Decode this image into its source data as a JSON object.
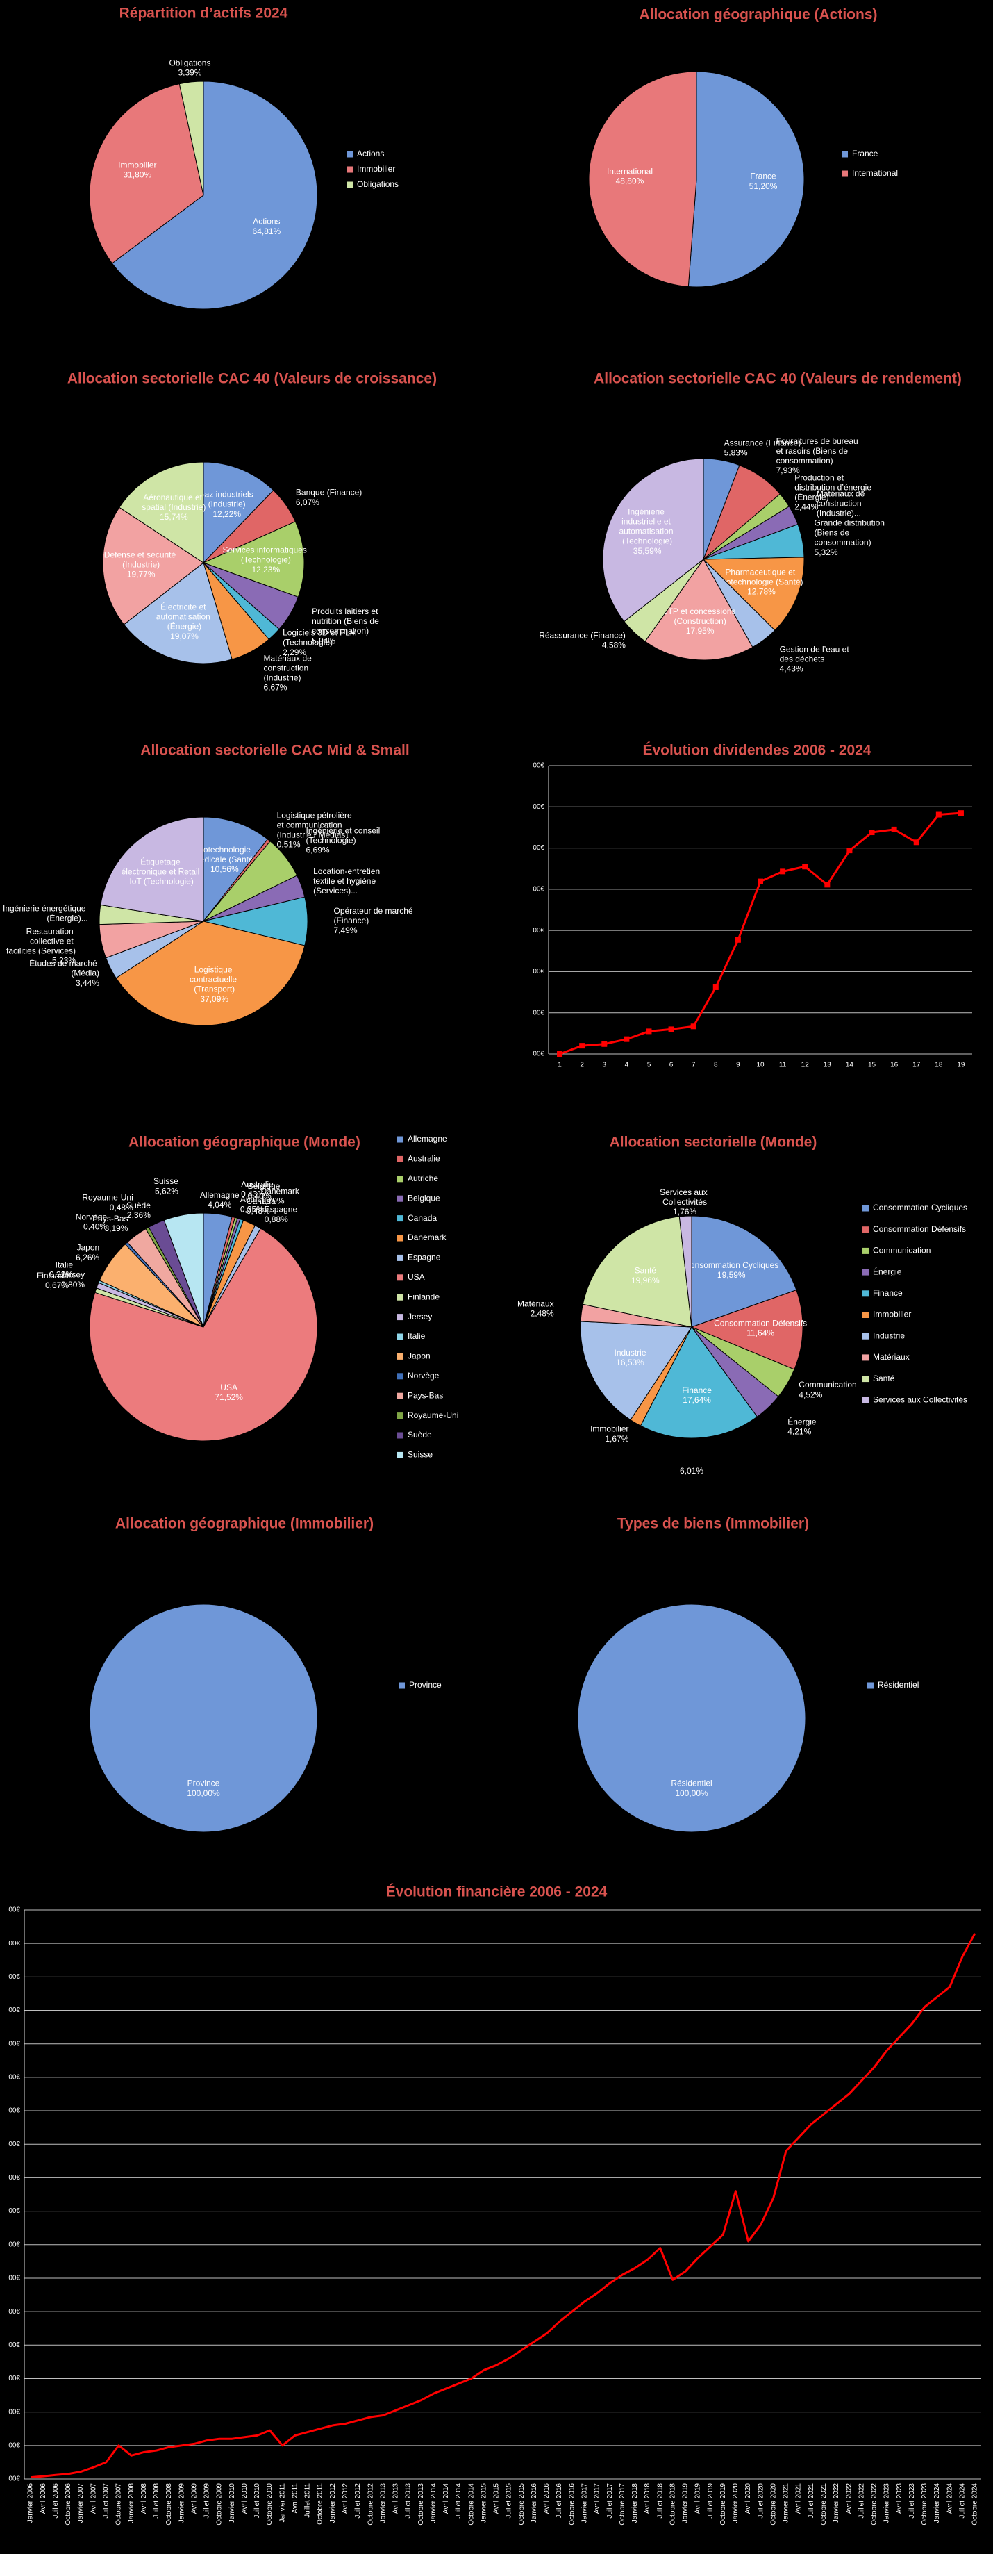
{
  "chart_data": [
    {
      "type": "pie",
      "title": "Répartition d’actifs 2024",
      "legend": true,
      "categories": [
        "Actions",
        "Immobilier",
        "Obligations"
      ],
      "values": [
        64.81,
        31.8,
        3.39
      ],
      "value_labels": [
        "64,81%",
        "31,80%",
        "3,39%"
      ],
      "colors": [
        "#6f97d8",
        "#e8787a",
        "#cfe5a6"
      ]
    },
    {
      "type": "pie",
      "title": "Allocation géographique (Actions)",
      "legend": true,
      "categories": [
        "France",
        "International"
      ],
      "values": [
        51.2,
        48.8
      ],
      "value_labels": [
        "51,20%",
        "48,80%"
      ],
      "colors": [
        "#6f97d8",
        "#e8787a"
      ]
    },
    {
      "type": "pie",
      "title": "Allocation sectorielle CAC 40 (Valeurs de croissance)",
      "legend": false,
      "categories": [
        "Gaz industriels (Industrie)",
        "Banque (Finance)",
        "Services informatiques (Technologie)",
        "Produits laitiers et nutrition (Biens de consommation)",
        "Logiciels 3D et PLM (Technologie)",
        "Matériaux de construction (Industrie)",
        "Électricité et automatisation (Énergie)",
        "Défense et sécurité (Industrie)",
        "Aéronautique et spatial (Industrie)"
      ],
      "values": [
        12.22,
        6.07,
        12.23,
        5.94,
        2.29,
        6.67,
        19.07,
        19.77,
        15.74
      ],
      "value_labels": [
        "12,22%",
        "6,07%",
        "12,23%",
        "5,94%",
        "2,29%",
        "6,67%",
        "19,07%",
        "19,77%",
        "15,74%"
      ],
      "colors": [
        "#6f97d8",
        "#e06666",
        "#a9cf6a",
        "#8a6bb5",
        "#4fb8d6",
        "#f79646",
        "#a7c1ea",
        "#f2a2a2",
        "#cfe5a6"
      ]
    },
    {
      "type": "pie",
      "title": "Allocation sectorielle CAC 40 (Valeurs de rendement)",
      "legend": false,
      "categories": [
        "Assurance (Finance)",
        "Fournitures de bureau et rasoirs (Biens de consommation)",
        "Production et distribution d’énergie (Énergie)",
        "Matériaux de construction (Industrie)...",
        "Grande distribution (Biens de consommation)",
        "Pharmaceutique et biotechnologie (Santé)",
        "Gestion de l’eau et des déchets",
        "BTP et concessions (Construction)",
        "Réassurance (Finance)",
        "Ingénierie industrielle et automatisation (Technologie)"
      ],
      "values": [
        5.83,
        7.93,
        2.44,
        3.15,
        5.32,
        12.78,
        4.43,
        17.95,
        4.58,
        35.59
      ],
      "value_labels": [
        "5,83%",
        "7,93%",
        "2,44%",
        null,
        "5,32%",
        "12,78%",
        "4,43%",
        "17,95%",
        "4,58%",
        "35,59%"
      ],
      "colors": [
        "#6f97d8",
        "#e06666",
        "#a9cf6a",
        "#8a6bb5",
        "#4fb8d6",
        "#f79646",
        "#a7c1ea",
        "#f2a2a2",
        "#cfe5a6",
        "#c8b8e2"
      ]
    },
    {
      "type": "pie",
      "title": "Allocation sectorielle CAC Mid & Small",
      "legend": false,
      "categories": [
        "Biotechnologie médicale (Santé)",
        "Logistique pétrolière et communication (Industrie / Médias)",
        "Ingénierie et conseil (Technologie)",
        "Location-entretien textile et hygiène (Services)...",
        "Opérateur de marché (Finance)",
        "Logistique contractuelle (Transport)",
        "Études de marché (Média)",
        "Restauration collective et facilities (Services)",
        "Ingénierie énergétique (Énergie)...",
        "Étiquetage électronique et Retail IoT (Technologie)"
      ],
      "values": [
        10.56,
        0.51,
        6.69,
        3.5,
        7.49,
        37.09,
        3.44,
        5.23,
        3.0,
        22.49
      ],
      "value_labels": [
        "10,56%",
        "0,51%",
        "6,69%",
        null,
        "7,49%",
        "37,09%",
        "3,44%",
        "5,23%",
        null,
        null
      ],
      "colors": [
        "#6f97d8",
        "#e06666",
        "#a9cf6a",
        "#8a6bb5",
        "#4fb8d6",
        "#f79646",
        "#a7c1ea",
        "#f2a2a2",
        "#cfe5a6",
        "#c8b8e2"
      ]
    },
    {
      "type": "line",
      "title": "Évolution dividendes 2006 - 2024",
      "grid": true,
      "markers": true,
      "color": "#ff0000",
      "categories": [
        1,
        2,
        3,
        4,
        5,
        6,
        7,
        8,
        9,
        10,
        11,
        12,
        13,
        14,
        15,
        16,
        17,
        18,
        19
      ],
      "values": [
        0,
        0.2,
        0.24,
        0.36,
        0.55,
        0.6,
        0.67,
        1.62,
        2.77,
        4.19,
        4.43,
        4.55,
        4.11,
        4.94,
        5.38,
        5.45,
        5.14,
        5.81,
        5.85
      ],
      "ylim": [
        0,
        7
      ],
      "yticks": [
        {
          "value": 0,
          "label": "00€"
        },
        {
          "value": 1,
          "label": "00€"
        },
        {
          "value": 2,
          "label": "00€"
        },
        {
          "value": 3,
          "label": "00€"
        },
        {
          "value": 4,
          "label": "00€"
        },
        {
          "value": 5,
          "label": "00€"
        },
        {
          "value": 6,
          "label": "00€"
        },
        {
          "value": 7,
          "label": "00€"
        }
      ]
    },
    {
      "type": "pie",
      "title": "Allocation géographique (Monde)",
      "legend": true,
      "categories": [
        "Allemagne",
        "Australie",
        "Autriche",
        "Belgique",
        "Canada",
        "Danemark",
        "Espagne",
        "USA",
        "Finlande",
        "Jersey",
        "Italie",
        "Japon",
        "Norvège",
        "Pays-Bas",
        "Royaume-Uni",
        "Suède",
        "Suisse"
      ],
      "values": [
        4.04,
        0.43,
        0.35,
        0.4,
        0.48,
        1.79,
        0.88,
        71.52,
        0.67,
        0.8,
        0.32,
        6.26,
        0.4,
        3.19,
        0.48,
        2.36,
        5.62
      ],
      "value_labels": [
        "4,04%",
        "0,43%",
        "0,35%",
        "0,40%",
        "0,48%",
        "1,79%",
        "0,88%",
        "71,52%",
        "0,67%",
        "0,80%",
        "0,32%",
        "6,26%",
        "0,40%",
        "3,19%",
        "0,48%",
        "2,36%",
        "5,62%"
      ],
      "colors": [
        "#6f97d8",
        "#e06666",
        "#a9cf6a",
        "#8a6bb5",
        "#4fb8d6",
        "#f79646",
        "#a7c1ea",
        "#ec7b7d",
        "#cfe5a6",
        "#c8b8e2",
        "#8fd6e8",
        "#fbb06e",
        "#3f6fb8",
        "#f0a8a0",
        "#7fa545",
        "#6a4c94",
        "#b7e6f2"
      ]
    },
    {
      "type": "pie",
      "title": "Allocation sectorielle (Monde)",
      "legend": true,
      "categories": [
        "Consommation Cycliques",
        "Consommation Défensifs",
        "Communication",
        "Énergie",
        "Finance",
        "Immobilier",
        "Industrie",
        "Matériaux",
        "Santé",
        "Services aux Collectivités"
      ],
      "values": [
        19.59,
        11.64,
        4.52,
        4.21,
        17.64,
        1.67,
        16.53,
        2.48,
        19.96,
        1.76
      ],
      "value_labels": [
        "19,59%",
        "11,64%",
        "4,52%",
        "4,21%",
        "17,64%",
        "1,67%",
        "16,53%",
        "2,48%",
        "19,96%",
        "1,76%"
      ],
      "annotations": [
        "6,01%"
      ],
      "colors": [
        "#6f97d8",
        "#e06666",
        "#a9cf6a",
        "#8a6bb5",
        "#4fb8d6",
        "#f79646",
        "#a7c1ea",
        "#f2a2a2",
        "#cfe5a6",
        "#c8b8e2"
      ]
    },
    {
      "type": "pie",
      "title": "Allocation géographique (Immobilier)",
      "legend": true,
      "categories": [
        "Province"
      ],
      "values": [
        100.0
      ],
      "value_labels": [
        "100,00%"
      ],
      "colors": [
        "#6f97d8"
      ]
    },
    {
      "type": "pie",
      "title": "Types de biens (Immobilier)",
      "legend": true,
      "categories": [
        "Résidentiel"
      ],
      "values": [
        100.0
      ],
      "value_labels": [
        "100,00%"
      ],
      "colors": [
        "#6f97d8"
      ]
    },
    {
      "type": "line",
      "title": "Évolution financière 2006 - 2024",
      "grid": true,
      "markers": false,
      "color": "#ff0000",
      "categories": [
        "Janvier 2006",
        "Avril 2006",
        "Juillet 2006",
        "Octobre 2006",
        "Janvier 2007",
        "Avril 2007",
        "Juillet 2007",
        "Octobre 2007",
        "Janvier 2008",
        "Avril 2008",
        "Juillet 2008",
        "Octobre 2008",
        "Janvier 2009",
        "Avril 2009",
        "Juillet 2009",
        "Octobre 2009",
        "Janvier 2010",
        "Avril 2010",
        "Juillet 2010",
        "Octobre 2010",
        "Janvier 2011",
        "Avril 2011",
        "Juillet 2011",
        "Octobre 2011",
        "Janvier 2012",
        "Avril 2012",
        "Juillet 2012",
        "Octobre 2012",
        "Janvier 2013",
        "Avril 2013",
        "Juillet 2013",
        "Octobre 2013",
        "Janvier 2014",
        "Avril 2014",
        "Juillet 2014",
        "Octobre 2014",
        "Janvier 2015",
        "Avril 2015",
        "Juillet 2015",
        "Octobre 2015",
        "Janvier 2016",
        "Avril 2016",
        "Juillet 2016",
        "Octobre 2016",
        "Janvier 2017",
        "Avril 2017",
        "Juillet 2017",
        "Octobre 2017",
        "Janvier 2018",
        "Avril 2018",
        "Juillet 2018",
        "Octobre 2018",
        "Janvier 2019",
        "Avril 2019",
        "Juillet 2019",
        "Octobre 2019",
        "Janvier 2020",
        "Avril 2020",
        "Juillet 2020",
        "Octobre 2020",
        "Janvier 2021",
        "Avril 2021",
        "Juillet 2021",
        "Octobre 2021",
        "Janvier 2022",
        "Avril 2022",
        "Juillet 2022",
        "Octobre 2022",
        "Janvier 2023",
        "Avril 2023",
        "Juillet 2023",
        "Octobre 2023",
        "Janvier 2024",
        "Avril 2024",
        "Juillet 2024",
        "Octobre 2024"
      ],
      "values": [
        0.05,
        0.08,
        0.12,
        0.15,
        0.22,
        0.35,
        0.5,
        1.0,
        0.7,
        0.8,
        0.85,
        0.95,
        1.0,
        1.05,
        1.15,
        1.2,
        1.2,
        1.25,
        1.3,
        1.45,
        1.0,
        1.3,
        1.4,
        1.5,
        1.6,
        1.65,
        1.75,
        1.85,
        1.9,
        2.05,
        2.2,
        2.35,
        2.55,
        2.7,
        2.85,
        3.0,
        3.25,
        3.4,
        3.6,
        3.85,
        4.1,
        4.35,
        4.7,
        5.0,
        5.3,
        5.55,
        5.85,
        6.1,
        6.3,
        6.55,
        6.9,
        5.95,
        6.2,
        6.6,
        6.95,
        7.3,
        8.6,
        7.1,
        7.6,
        8.4,
        9.8,
        10.2,
        10.6,
        10.9,
        11.2,
        11.5,
        11.9,
        12.3,
        12.8,
        13.2,
        13.6,
        14.1,
        14.4,
        14.7,
        15.6,
        16.3
      ],
      "ylim": [
        0,
        17
      ],
      "yticks": [
        {
          "value": 0,
          "label": "00€"
        },
        {
          "value": 1,
          "label": "00€"
        },
        {
          "value": 2,
          "label": "00€"
        },
        {
          "value": 3,
          "label": "00€"
        },
        {
          "value": 4,
          "label": "00€"
        },
        {
          "value": 5,
          "label": "00€"
        },
        {
          "value": 6,
          "label": "00€"
        },
        {
          "value": 7,
          "label": "00€"
        },
        {
          "value": 8,
          "label": "00€"
        },
        {
          "value": 9,
          "label": "00€"
        },
        {
          "value": 10,
          "label": "00€"
        },
        {
          "value": 11,
          "label": "00€"
        },
        {
          "value": 12,
          "label": "00€"
        },
        {
          "value": 13,
          "label": "00€"
        },
        {
          "value": 14,
          "label": "00€"
        },
        {
          "value": 15,
          "label": "00€"
        },
        {
          "value": 16,
          "label": "00€"
        },
        {
          "value": 17,
          "label": "00€"
        }
      ]
    }
  ]
}
